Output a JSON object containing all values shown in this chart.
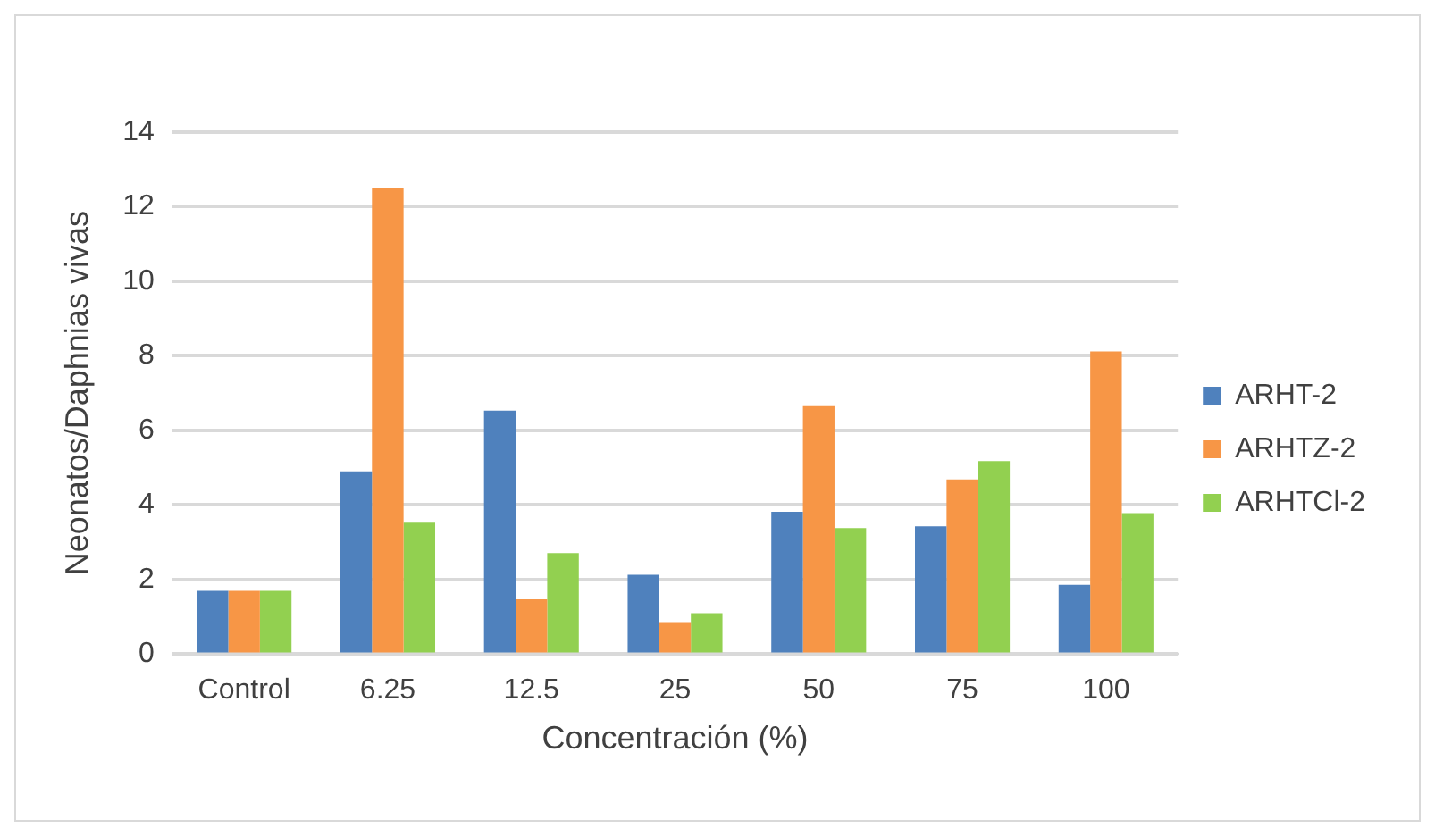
{
  "chart_data": {
    "type": "bar",
    "xlabel": "Concentración (%)",
    "ylabel": "Neonatos/Daphnias vivas",
    "categories": [
      "Control",
      "6.25",
      "12.5",
      "25",
      "50",
      "75",
      "100"
    ],
    "series": [
      {
        "name": "ARHT-2",
        "color": "#4f81bd",
        "values": [
          1.7,
          4.9,
          6.53,
          2.13,
          3.82,
          3.43,
          1.86
        ]
      },
      {
        "name": "ARHTZ-2",
        "color": "#f79646",
        "values": [
          1.7,
          12.5,
          1.47,
          0.86,
          6.65,
          4.69,
          8.12
        ]
      },
      {
        "name": "ARHTCl-2",
        "color": "#92d050",
        "values": [
          1.7,
          3.55,
          2.71,
          1.1,
          3.38,
          5.18,
          3.78
        ]
      }
    ],
    "ylim": [
      0,
      14
    ],
    "yticks": [
      0,
      2,
      4,
      6,
      8,
      10,
      12,
      14
    ],
    "grid": "y",
    "legend": "right"
  }
}
